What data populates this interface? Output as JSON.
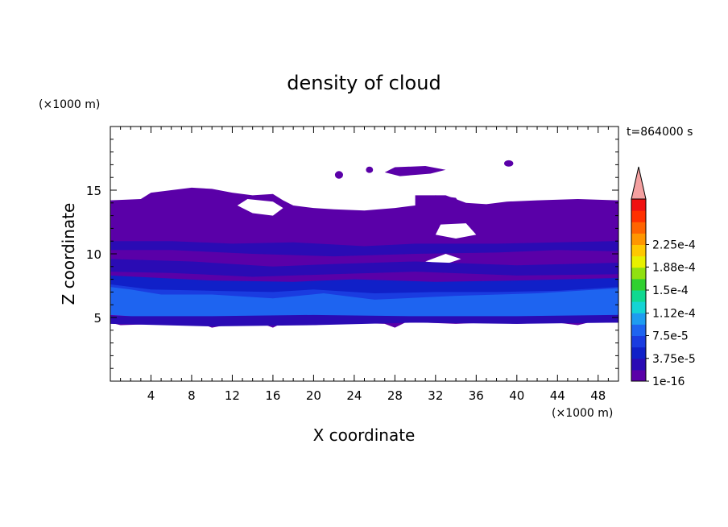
{
  "chart_data": {
    "type": "heatmap",
    "title": "density of cloud",
    "xlabel": "X coordinate",
    "ylabel": "Z coordinate",
    "x_unit": "(×1000 m)",
    "y_unit": "(×1000 m)",
    "time_label": "t=864000 s",
    "xlim": [
      0,
      50
    ],
    "ylim": [
      0,
      20
    ],
    "x_ticks": [
      4,
      8,
      12,
      16,
      20,
      24,
      28,
      32,
      36,
      40,
      44,
      48
    ],
    "y_ticks": [
      5,
      10,
      15
    ],
    "colorbar": {
      "labels": [
        {
          "value": 0.000225,
          "text": "2.25e-4"
        },
        {
          "value": 0.000188,
          "text": "1.88e-4"
        },
        {
          "value": 0.00015,
          "text": "1.5e-4"
        },
        {
          "value": 0.000112,
          "text": "1.12e-4"
        },
        {
          "value": 7.5e-05,
          "text": "7.5e-5"
        },
        {
          "value": 3.75e-05,
          "text": "3.75e-5"
        },
        {
          "value": 1e-16,
          "text": "1e-16"
        }
      ],
      "colors_bottom_to_top": [
        "#5a00a8",
        "#2a0bb4",
        "#1020c8",
        "#1a3ce0",
        "#1e64f0",
        "#1e9cf0",
        "#14d4d4",
        "#10d890",
        "#30d030",
        "#90e010",
        "#e8f000",
        "#ffc800",
        "#ff9600",
        "#ff6400",
        "#ff3000",
        "#f01010"
      ],
      "extend_color": "#f4a0a0"
    },
    "field_description": {
      "cloud_layer_z_range": [
        4.2,
        15.2
      ],
      "cores": [
        {
          "x_center": 6,
          "z": 6,
          "level": "high"
        },
        {
          "x_center": 21,
          "z": 6,
          "level": "high"
        },
        {
          "x_center": 34,
          "z": 6,
          "level": "high"
        },
        {
          "x_center": 42,
          "z": 6,
          "level": "high"
        }
      ],
      "upper_patches": [
        {
          "x": 21.5,
          "z": 16.5
        },
        {
          "x": 39,
          "z": 17
        },
        {
          "x": 22,
          "z": 16.2
        }
      ]
    }
  }
}
